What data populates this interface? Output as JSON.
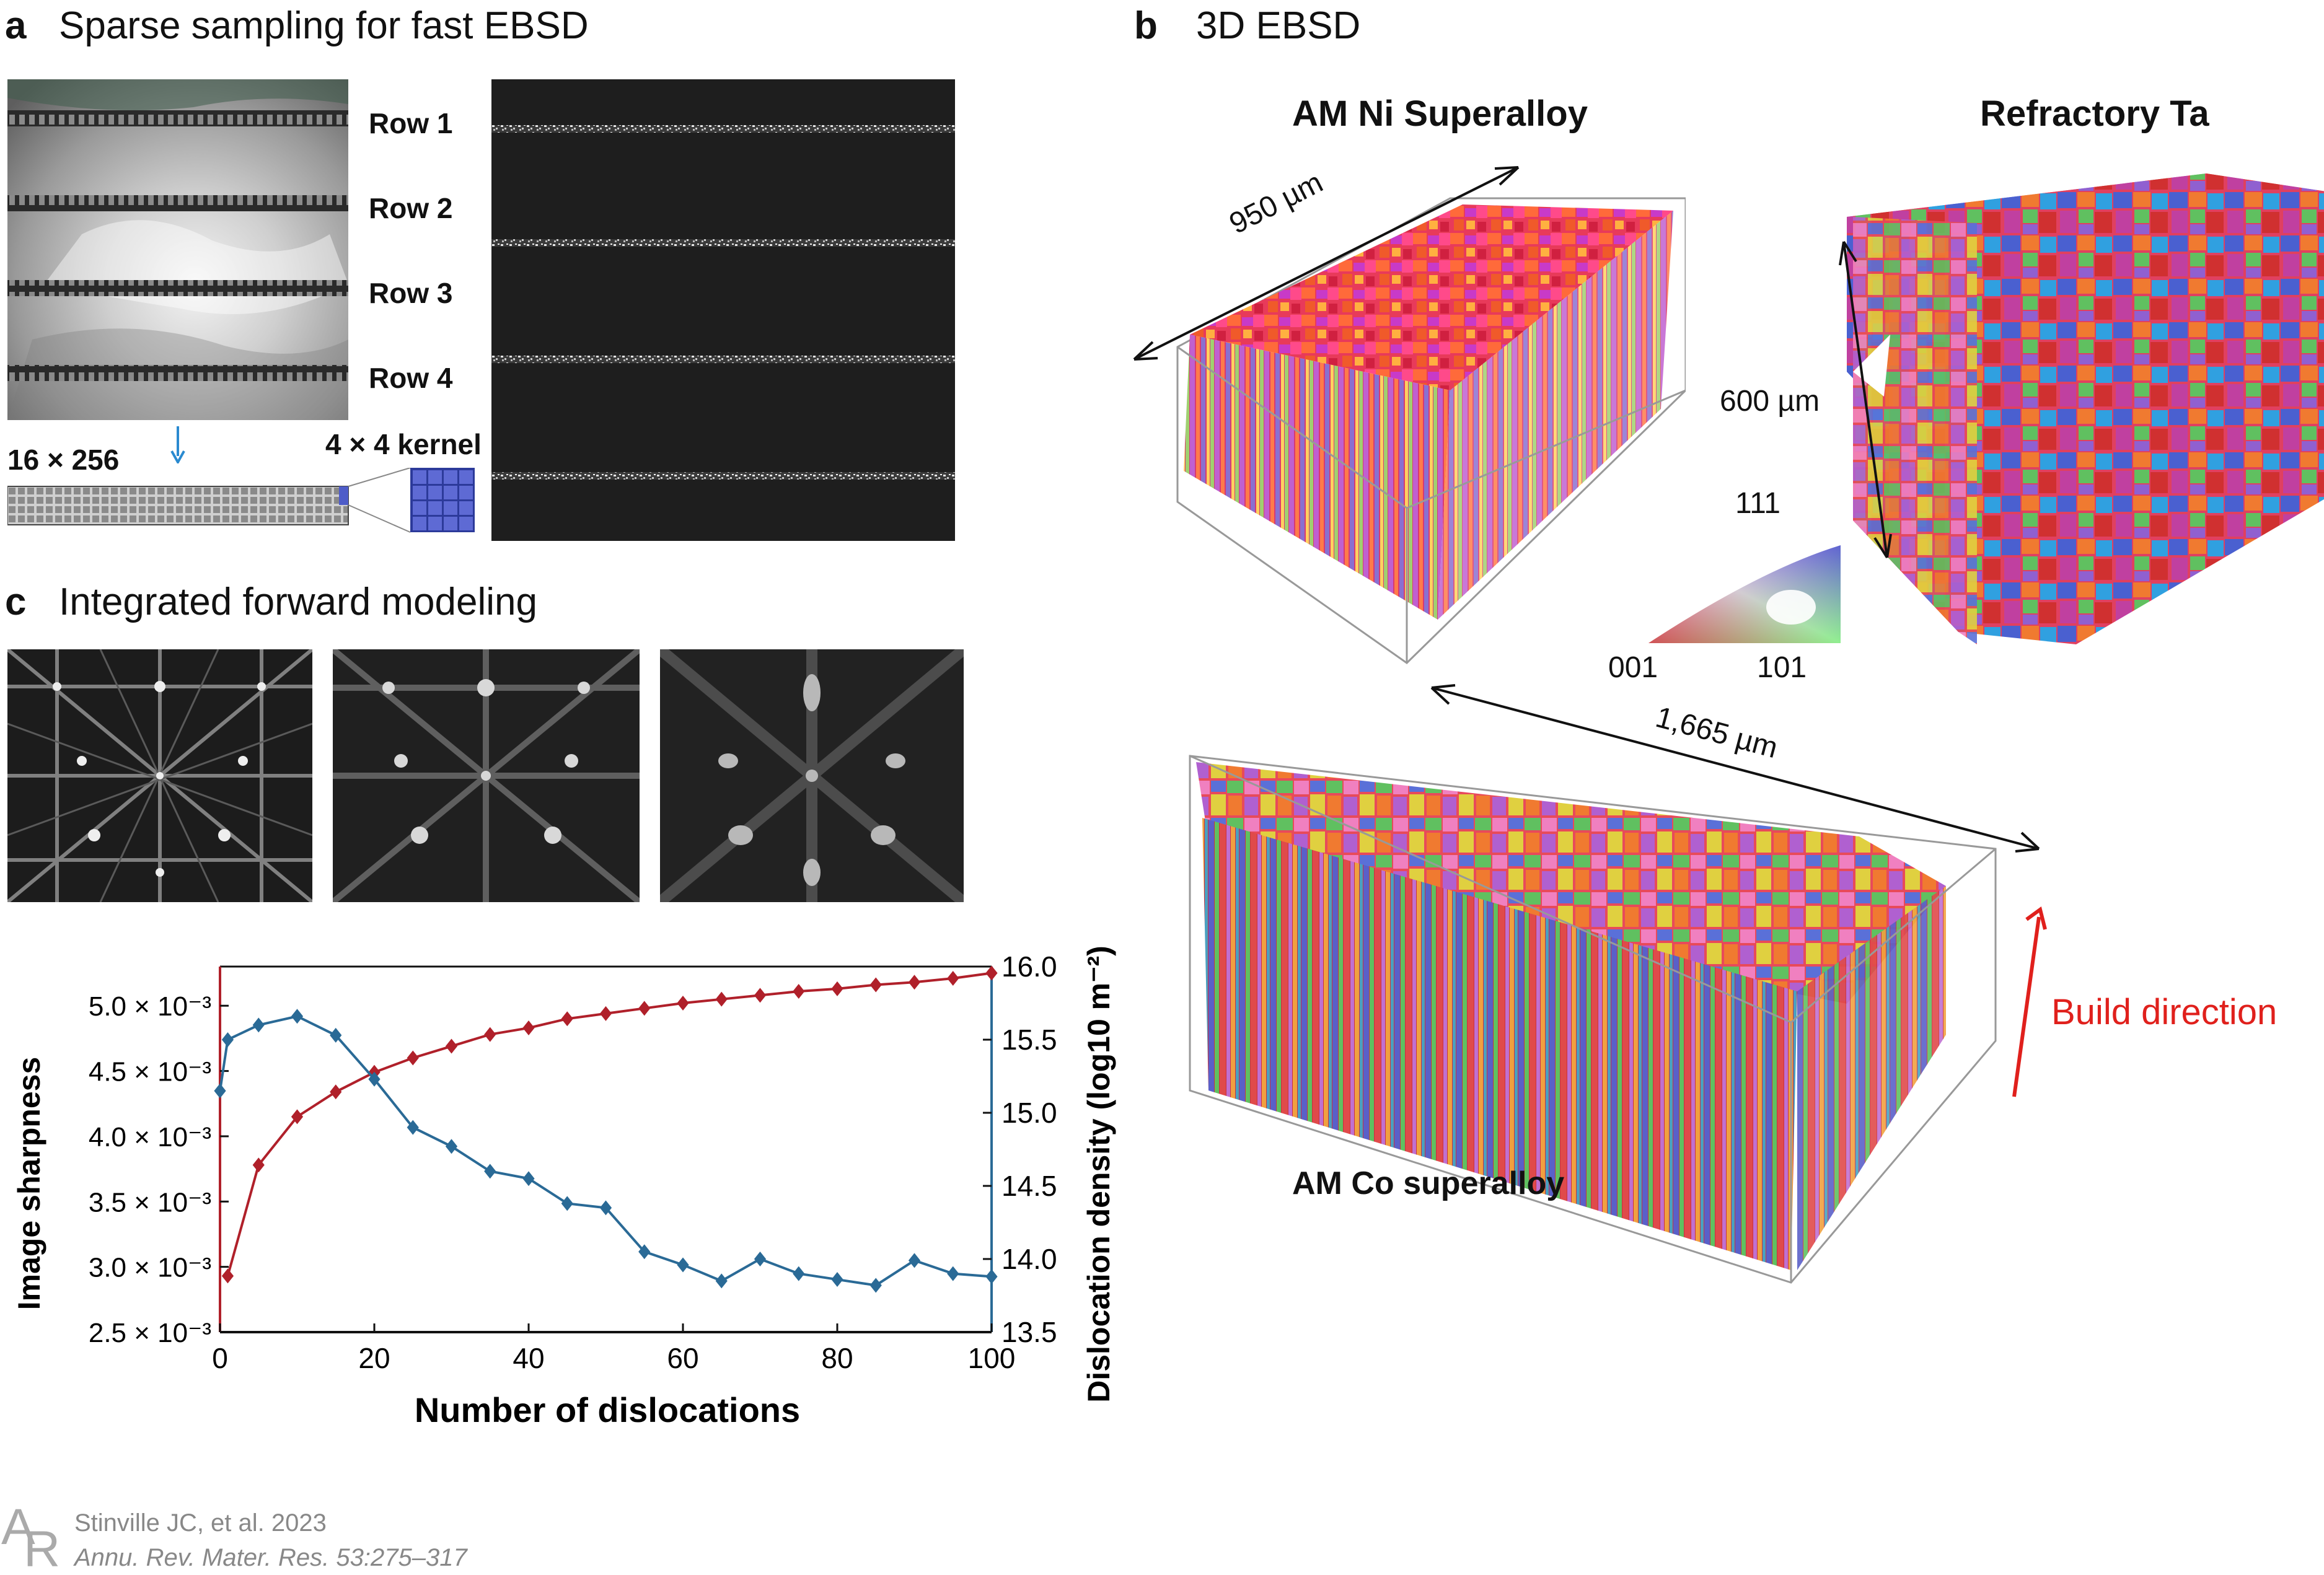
{
  "panel_a": {
    "letter": "a",
    "title": "Sparse sampling for fast EBSD",
    "rows": [
      "Row 1",
      "Row 2",
      "Row 3",
      "Row 4"
    ],
    "grid_label": "16 × 256",
    "kernel_label": "4 × 4 kernel"
  },
  "panel_b": {
    "letter": "b",
    "title": "3D EBSD",
    "ni_title": "AM Ni Superalloy",
    "ta_title": "Refractory Ta",
    "co_title": "AM Co superalloy",
    "dim_950": "950 µm",
    "dim_600": "600 µm",
    "dim_1665": "1,665 µm",
    "ipf": {
      "top": "111",
      "left": "001",
      "right": "101"
    },
    "build_direction": "Build direction"
  },
  "panel_c": {
    "letter": "c",
    "title": "Integrated forward modeling"
  },
  "chart_data": {
    "type": "line",
    "xlabel": "Number of dislocations",
    "ylabel_left": "Image sharpness",
    "ylabel_right": "Dislocation density (log10 m⁻²)",
    "xlim": [
      0,
      100
    ],
    "ylim_left": [
      0.0025,
      0.0053
    ],
    "ylim_right": [
      13.5,
      16.0
    ],
    "x_ticks": [
      "0",
      "20",
      "40",
      "60",
      "80",
      "100"
    ],
    "y_left_ticks": [
      "2.5 × 10⁻³",
      "3.0 × 10⁻³",
      "3.5 × 10⁻³",
      "4.0 × 10⁻³",
      "4.5 × 10⁻³",
      "5.0 × 10⁻³"
    ],
    "y_left_tick_values": [
      0.0025,
      0.003,
      0.0035,
      0.004,
      0.0045,
      0.005
    ],
    "y_right_ticks": [
      "13.5",
      "14.0",
      "14.5",
      "15.0",
      "15.5",
      "16.0"
    ],
    "y_right_tick_values": [
      13.5,
      14.0,
      14.5,
      15.0,
      15.5,
      16.0
    ],
    "grid": false,
    "series": [
      {
        "axis": "left",
        "color": "#b0202a",
        "x": [
          1,
          5,
          10,
          15,
          20,
          25,
          30,
          35,
          40,
          45,
          50,
          55,
          60,
          65,
          70,
          75,
          80,
          85,
          90,
          95,
          100
        ],
        "values": [
          0.00293,
          0.00378,
          0.00415,
          0.00434,
          0.00449,
          0.0046,
          0.00469,
          0.00478,
          0.00483,
          0.0049,
          0.00494,
          0.00498,
          0.00502,
          0.00505,
          0.00508,
          0.00511,
          0.00513,
          0.00516,
          0.00518,
          0.00521,
          0.00525
        ]
      },
      {
        "axis": "right",
        "color": "#2a6a96",
        "x": [
          0,
          1,
          5,
          10,
          15,
          20,
          25,
          30,
          35,
          40,
          45,
          50,
          55,
          60,
          65,
          70,
          75,
          80,
          85,
          90,
          95,
          100
        ],
        "values": [
          15.15,
          15.5,
          15.6,
          15.66,
          15.53,
          15.23,
          14.9,
          14.77,
          14.6,
          14.55,
          14.38,
          14.35,
          14.05,
          13.96,
          13.85,
          14.0,
          13.9,
          13.86,
          13.82,
          13.99,
          13.9,
          13.88
        ]
      }
    ]
  },
  "citation": {
    "line1": "Stinville JC, et al. 2023",
    "line2": "Annu. Rev. Mater. Res. 53:275–317"
  },
  "colors": {
    "red_series": "#b0202a",
    "blue_series": "#2a6a96",
    "build_arrow": "#e0201c",
    "blue_arrow": "#2a8ad0",
    "kernel_blue": "#4e5cc8"
  }
}
